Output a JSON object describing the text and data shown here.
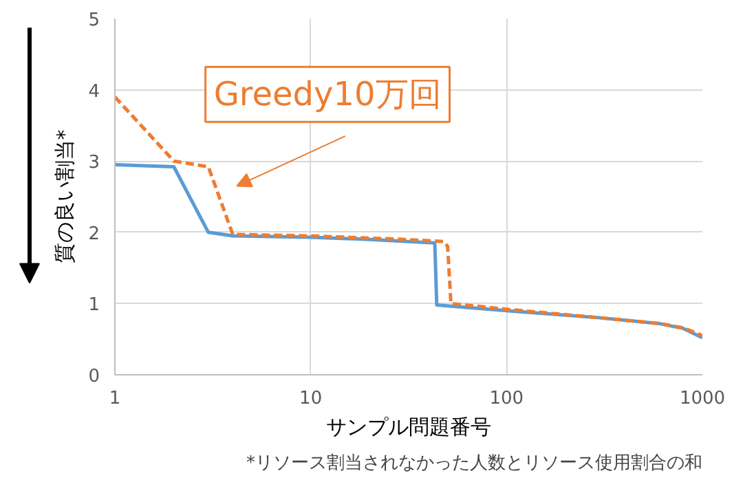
{
  "chart_data": {
    "type": "line",
    "xlabel": "サンプル問題番号",
    "ylabel": "質の良い割当*",
    "log": "x",
    "xlim": [
      1,
      1000
    ],
    "xticks": [
      1,
      10,
      100,
      1000
    ],
    "ylim": [
      0,
      5
    ],
    "yticks": [
      0,
      1,
      2,
      3,
      4,
      5
    ],
    "grid": true,
    "legend": false,
    "series": [
      {
        "color": "#5b9bd5",
        "line_style": "solid",
        "x": [
          1,
          2,
          3,
          4,
          10,
          20,
          43,
          44,
          100,
          300,
          600,
          800,
          1000
        ],
        "values": [
          2.95,
          2.92,
          2.0,
          1.95,
          1.93,
          1.9,
          1.85,
          0.98,
          0.9,
          0.8,
          0.72,
          0.65,
          0.52
        ]
      },
      {
        "name": "Greedy10万回",
        "color": "#ed7d31",
        "line_style": "dashed",
        "x": [
          1,
          2,
          3,
          4,
          10,
          30,
          48,
          50,
          52,
          100,
          300,
          600,
          800,
          1000
        ],
        "values": [
          3.9,
          3.0,
          2.92,
          1.97,
          1.95,
          1.9,
          1.87,
          1.8,
          1.0,
          0.92,
          0.8,
          0.72,
          0.66,
          0.55
        ]
      }
    ],
    "annotations": [
      "*リソース割当されなかった人数とリソース使用割合の和"
    ]
  }
}
